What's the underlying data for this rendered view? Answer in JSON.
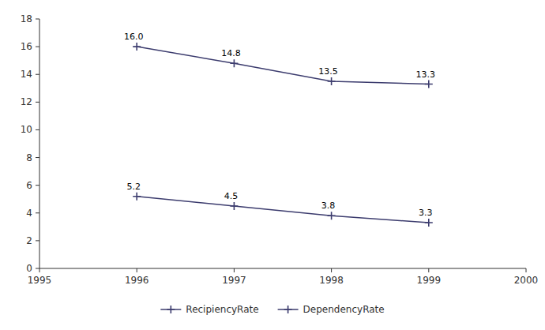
{
  "chart_data": {
    "type": "line",
    "x": [
      1996,
      1997,
      1998,
      1999
    ],
    "series": [
      {
        "name": "RecipiencyRate",
        "color": "#3C3C6E",
        "marker": "plus",
        "values": [
          16.0,
          14.8,
          13.5,
          13.3
        ],
        "value_labels": [
          "16.0",
          "14.8",
          "13.5",
          "13.3"
        ]
      },
      {
        "name": "DependencyRate",
        "color": "#3C3C6E",
        "marker": "plus",
        "values": [
          5.2,
          4.5,
          3.8,
          3.3
        ],
        "value_labels": [
          "5.2",
          "4.5",
          "3.8",
          "3.3"
        ]
      }
    ],
    "xlim": [
      1995,
      2000
    ],
    "xticks": [
      1995,
      1996,
      1997,
      1998,
      1999,
      2000
    ],
    "ylim": [
      0,
      18
    ],
    "yticks": [
      0,
      2,
      4,
      6,
      8,
      10,
      12,
      14,
      16,
      18
    ],
    "grid": false,
    "legend": "bottom",
    "data_labels": true
  }
}
